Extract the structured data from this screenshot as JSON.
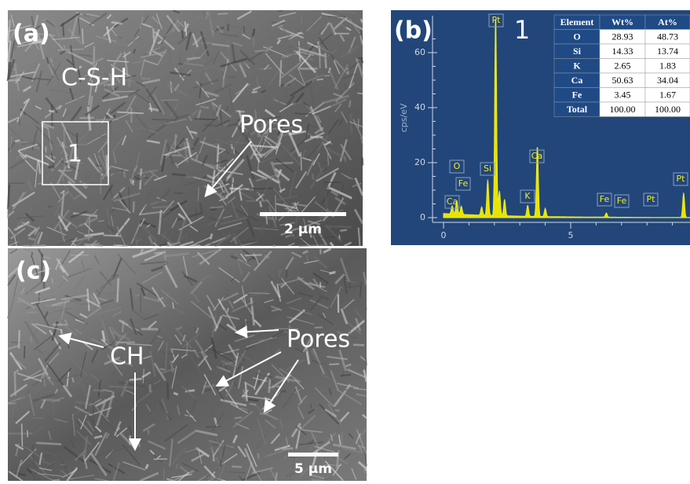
{
  "panels": {
    "a": {
      "label": "(a)",
      "annotations": [
        "C-S-H",
        "1",
        "Pores"
      ],
      "scale_bar": "2 μm"
    },
    "b": {
      "label": "(b)",
      "region": "1",
      "y_axis_label": "cps/eV",
      "yticks": [
        0,
        20,
        40,
        60
      ],
      "xticks": [
        0,
        5
      ],
      "peak_labels": [
        "Ca",
        "O",
        "Fe",
        "Si",
        "Pt",
        "K",
        "Ca",
        "Fe",
        "Fe",
        "Pt",
        "Pt"
      ],
      "table": {
        "header": [
          "Element",
          "Wt%",
          "At%"
        ],
        "rows": [
          [
            "O",
            "28.93",
            "48.73"
          ],
          [
            "Si",
            "14.33",
            "13.74"
          ],
          [
            "K",
            "2.65",
            "1.83"
          ],
          [
            "Ca",
            "50.63",
            "34.04"
          ],
          [
            "Fe",
            "3.45",
            "1.67"
          ],
          [
            "Total",
            "100.00",
            "100.00"
          ]
        ]
      }
    },
    "c": {
      "label": "(c)",
      "annotations": [
        "CH",
        "Pores"
      ],
      "scale_bar": "5 μm"
    }
  }
}
